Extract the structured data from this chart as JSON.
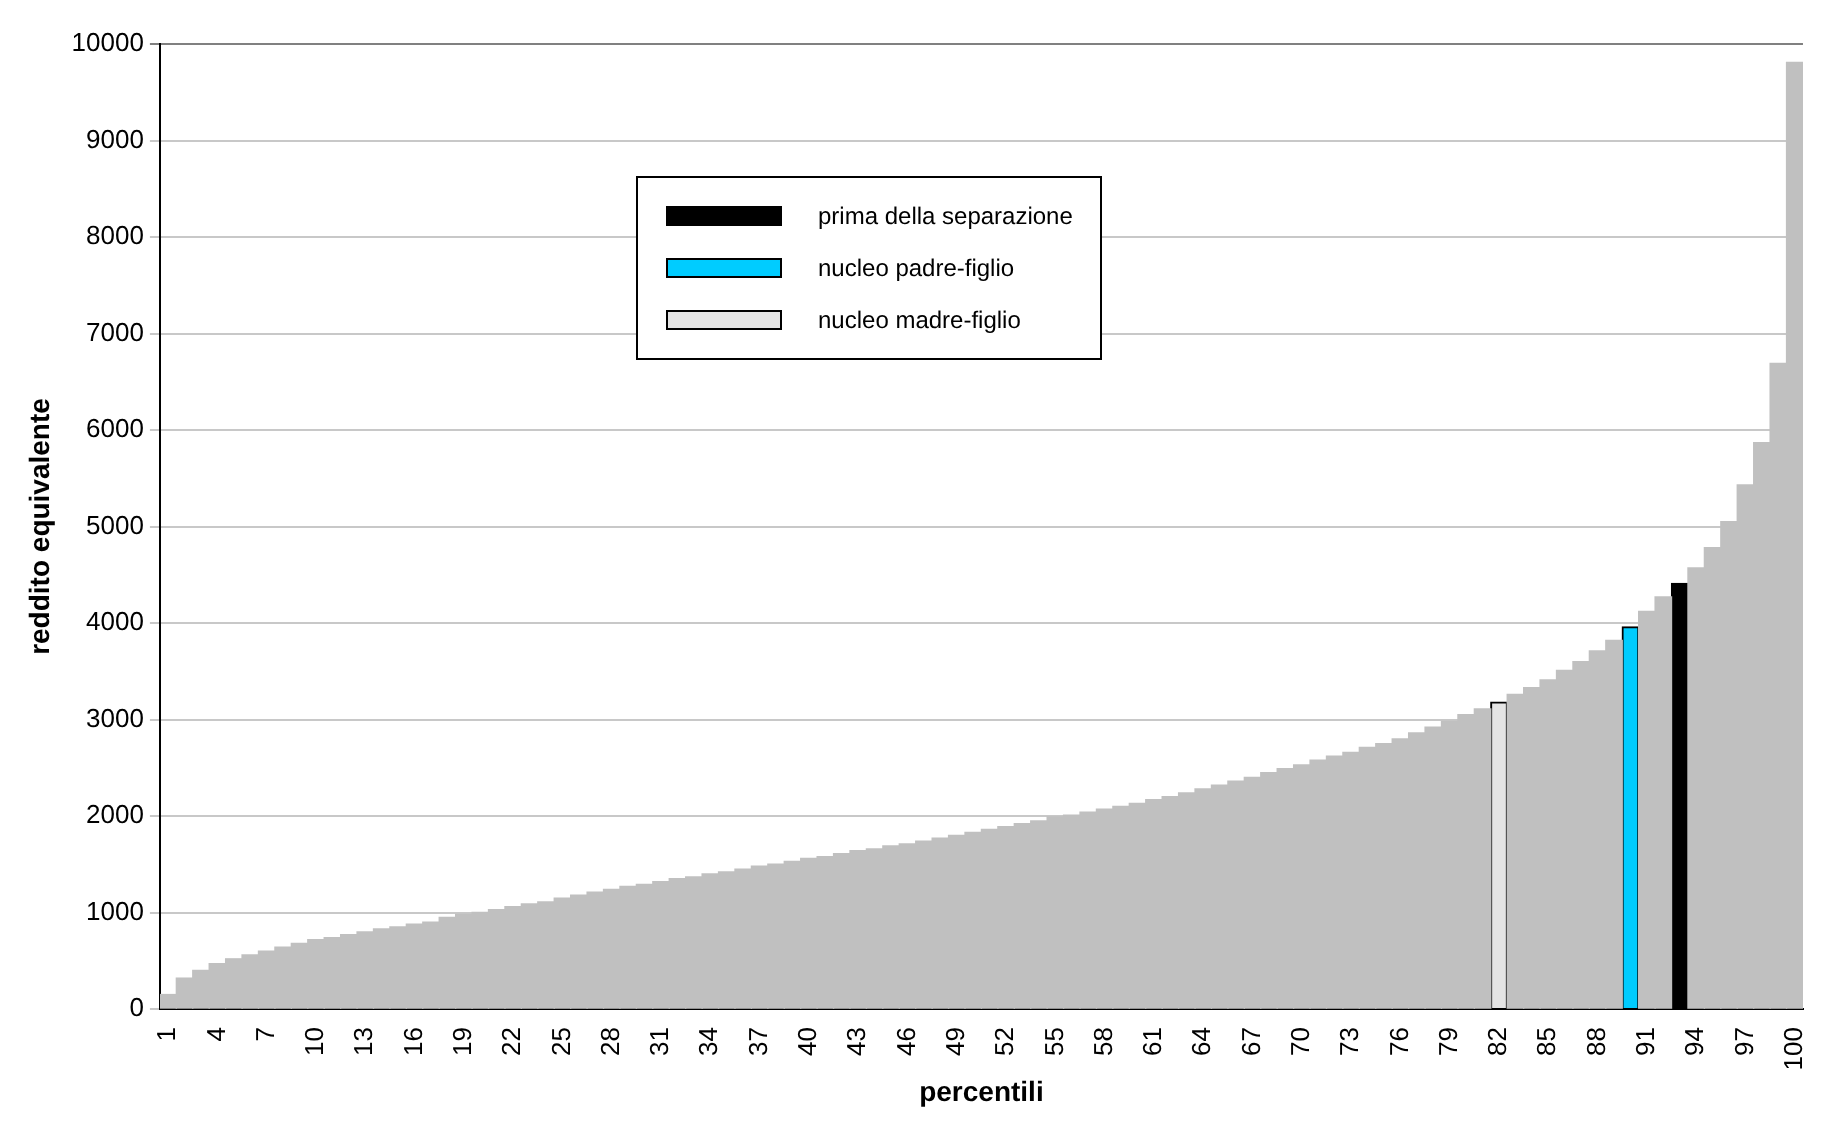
{
  "chart_data": {
    "type": "bar",
    "xlabel": "percentili",
    "ylabel": "reddito equivalente",
    "categories": [
      "1",
      null,
      null,
      "4",
      null,
      null,
      "7",
      null,
      null,
      "10",
      null,
      null,
      "13",
      null,
      null,
      "16",
      null,
      null,
      "19",
      null,
      null,
      "22",
      null,
      null,
      "25",
      null,
      null,
      "28",
      null,
      null,
      "31",
      null,
      null,
      "34",
      null,
      null,
      "37",
      null,
      null,
      "40",
      null,
      null,
      "43",
      null,
      null,
      "46",
      null,
      null,
      "49",
      null,
      null,
      "52",
      null,
      null,
      "55",
      null,
      null,
      "58",
      null,
      null,
      "61",
      null,
      null,
      "64",
      null,
      null,
      "67",
      null,
      null,
      "70",
      null,
      null,
      "73",
      null,
      null,
      "76",
      null,
      null,
      "79",
      null,
      null,
      "82",
      null,
      null,
      "85",
      null,
      null,
      "88",
      null,
      null,
      "91",
      null,
      null,
      "94",
      null,
      null,
      "97",
      null,
      null,
      "100"
    ],
    "series": [
      {
        "color": "#c0c0c0",
        "values": [
          150,
          320,
          400,
          470,
          520,
          560,
          600,
          640,
          680,
          720,
          740,
          770,
          800,
          830,
          850,
          880,
          900,
          950,
          980,
          1000,
          1030,
          1060,
          1090,
          1110,
          1150,
          1180,
          1210,
          1240,
          1270,
          1290,
          1320,
          1350,
          1370,
          1400,
          1420,
          1450,
          1480,
          1500,
          1530,
          1560,
          1580,
          1610,
          1640,
          1660,
          1690,
          1710,
          1740,
          1770,
          1800,
          1830,
          1860,
          1890,
          1920,
          1950,
          1990,
          2010,
          2040,
          2070,
          2100,
          2130,
          2170,
          2200,
          2240,
          2280,
          2320,
          2360,
          2400,
          2450,
          2490,
          2530,
          2580,
          2620,
          2660,
          2710,
          2750,
          2800,
          2860,
          2920,
          2980,
          3050,
          3110,
          null,
          3260,
          3330,
          3410,
          3510,
          3600,
          3710,
          3820,
          null,
          4120,
          4270,
          null,
          4570,
          4780,
          5050,
          5430,
          5870,
          6690,
          9810
        ]
      },
      {
        "name": "prima della separazione",
        "color": "#000000",
        "values": [
          null,
          null,
          null,
          null,
          null,
          null,
          null,
          null,
          null,
          null,
          null,
          null,
          null,
          null,
          null,
          null,
          null,
          null,
          null,
          null,
          null,
          null,
          null,
          null,
          null,
          null,
          null,
          null,
          null,
          null,
          null,
          null,
          null,
          null,
          null,
          null,
          null,
          null,
          null,
          null,
          null,
          null,
          null,
          null,
          null,
          null,
          null,
          null,
          null,
          null,
          null,
          null,
          null,
          null,
          null,
          null,
          null,
          null,
          null,
          null,
          null,
          null,
          null,
          null,
          null,
          null,
          null,
          null,
          null,
          null,
          null,
          null,
          null,
          null,
          null,
          null,
          null,
          null,
          null,
          null,
          null,
          null,
          null,
          null,
          null,
          null,
          null,
          null,
          null,
          null,
          null,
          null,
          4410,
          null,
          null,
          null,
          null,
          null,
          null,
          null
        ]
      },
      {
        "name": "nucleo padre-figlio",
        "color": "#00ccff",
        "values": [
          null,
          null,
          null,
          null,
          null,
          null,
          null,
          null,
          null,
          null,
          null,
          null,
          null,
          null,
          null,
          null,
          null,
          null,
          null,
          null,
          null,
          null,
          null,
          null,
          null,
          null,
          null,
          null,
          null,
          null,
          null,
          null,
          null,
          null,
          null,
          null,
          null,
          null,
          null,
          null,
          null,
          null,
          null,
          null,
          null,
          null,
          null,
          null,
          null,
          null,
          null,
          null,
          null,
          null,
          null,
          null,
          null,
          null,
          null,
          null,
          null,
          null,
          null,
          null,
          null,
          null,
          null,
          null,
          null,
          null,
          null,
          null,
          null,
          null,
          null,
          null,
          null,
          null,
          null,
          null,
          null,
          null,
          null,
          null,
          null,
          null,
          null,
          null,
          null,
          3960,
          null,
          null,
          null,
          null,
          null,
          null,
          null,
          null,
          null,
          null
        ]
      },
      {
        "name": "nucleo madre-figlio",
        "color": "#e4e4e4",
        "values": [
          null,
          null,
          null,
          null,
          null,
          null,
          null,
          null,
          null,
          null,
          null,
          null,
          null,
          null,
          null,
          null,
          null,
          null,
          null,
          null,
          null,
          null,
          null,
          null,
          null,
          null,
          null,
          null,
          null,
          null,
          null,
          null,
          null,
          null,
          null,
          null,
          null,
          null,
          null,
          null,
          null,
          null,
          null,
          null,
          null,
          null,
          null,
          null,
          null,
          null,
          null,
          null,
          null,
          null,
          null,
          null,
          null,
          null,
          null,
          null,
          null,
          null,
          null,
          null,
          null,
          null,
          null,
          null,
          null,
          null,
          null,
          null,
          null,
          null,
          null,
          null,
          null,
          null,
          null,
          null,
          null,
          3180,
          null,
          null,
          null,
          null,
          null,
          null,
          null,
          null,
          null,
          null,
          null,
          null,
          null,
          null,
          null,
          null,
          null,
          null
        ]
      }
    ],
    "ylim": [
      0,
      10000
    ],
    "yticks": [
      0,
      1000,
      2000,
      3000,
      4000,
      5000,
      6000,
      7000,
      8000,
      9000,
      10000
    ],
    "grid": "y",
    "legend": "top"
  }
}
